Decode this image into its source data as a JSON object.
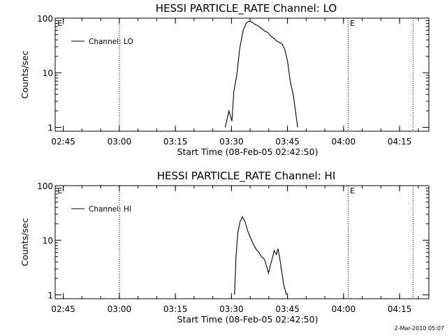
{
  "footer": {
    "timestamp": "2-Mar-2010 05:07"
  },
  "chart_data": [
    {
      "type": "line",
      "title": "HESSI PARTICLE_RATE Channel: LO",
      "xlabel": "Start Time (08-Feb-05 02:42:50)",
      "ylabel": "Counts/sec",
      "yscale": "log",
      "xlim_minutes": [
        0,
        100
      ],
      "ylim": [
        0.85,
        100
      ],
      "x_ticks": [
        "02:45",
        "03:00",
        "03:15",
        "03:30",
        "03:45",
        "04:00",
        "04:15"
      ],
      "x_tick_minutes": [
        2.17,
        17.17,
        32.17,
        47.17,
        62.17,
        77.17,
        92.17
      ],
      "y_ticks": [
        "1",
        "10",
        "100"
      ],
      "y_tick_values": [
        1,
        10,
        100
      ],
      "event_lines_minutes": [
        17.2,
        78.4,
        95.8
      ],
      "flags": [
        {
          "label": "E",
          "minute": 0.6
        },
        {
          "label": "E",
          "minute": 78.9
        }
      ],
      "legend": {
        "label": "Channel: LO",
        "position": "top-left"
      },
      "series": [
        {
          "name": "Channel: LO",
          "x": [
            45.5,
            46.5,
            47.3,
            47.8,
            48.6,
            49.4,
            50.3,
            51.2,
            51.9,
            52.6,
            53.5,
            54.4,
            55.3,
            56.2,
            56.9,
            57.7,
            58.5,
            59.3,
            60.0,
            60.8,
            61.5,
            62.2,
            62.9,
            63.7,
            64.3,
            64.9
          ],
          "y": [
            1.0,
            2.0,
            1.3,
            4.5,
            9.0,
            28.0,
            60.0,
            82.0,
            88.0,
            85.0,
            77.0,
            72.0,
            64.0,
            57.0,
            55.0,
            47.0,
            43.0,
            38.0,
            36.0,
            33.0,
            26.0,
            16.0,
            7.0,
            4.0,
            2.0,
            1.0
          ]
        }
      ]
    },
    {
      "type": "line",
      "title": "HESSI PARTICLE_RATE Channel: HI",
      "xlabel": "Start Time (08-Feb-05 02:42:50)",
      "ylabel": "Counts/sec",
      "yscale": "log",
      "xlim_minutes": [
        0,
        100
      ],
      "ylim": [
        0.85,
        100
      ],
      "x_ticks": [
        "02:45",
        "03:00",
        "03:15",
        "03:30",
        "03:45",
        "04:00",
        "04:15"
      ],
      "x_tick_minutes": [
        2.17,
        17.17,
        32.17,
        47.17,
        62.17,
        77.17,
        92.17
      ],
      "y_ticks": [
        "1",
        "10",
        "100"
      ],
      "y_tick_values": [
        1,
        10,
        100
      ],
      "event_lines_minutes": [
        17.2,
        78.4,
        95.8
      ],
      "flags": [
        {
          "label": "E",
          "minute": 0.6
        },
        {
          "label": "E",
          "minute": 78.9
        }
      ],
      "legend": {
        "label": "Channel: HI",
        "position": "top-left"
      },
      "series": [
        {
          "name": "Channel: HI",
          "x": [
            48.0,
            48.4,
            48.9,
            49.5,
            50.1,
            50.8,
            51.5,
            52.3,
            53.0,
            53.7,
            54.5,
            55.2,
            56.0,
            56.6,
            57.1,
            57.6,
            58.1,
            58.6,
            59.2,
            59.6,
            60.1,
            60.6,
            61.2,
            61.9
          ],
          "y": [
            1.0,
            5.0,
            14.0,
            22.0,
            27.0,
            22.0,
            15.0,
            11.0,
            8.5,
            7.0,
            6.0,
            5.0,
            4.5,
            3.3,
            2.5,
            3.5,
            4.6,
            6.5,
            5.5,
            7.0,
            4.7,
            2.7,
            1.5,
            1.0
          ]
        }
      ]
    }
  ]
}
